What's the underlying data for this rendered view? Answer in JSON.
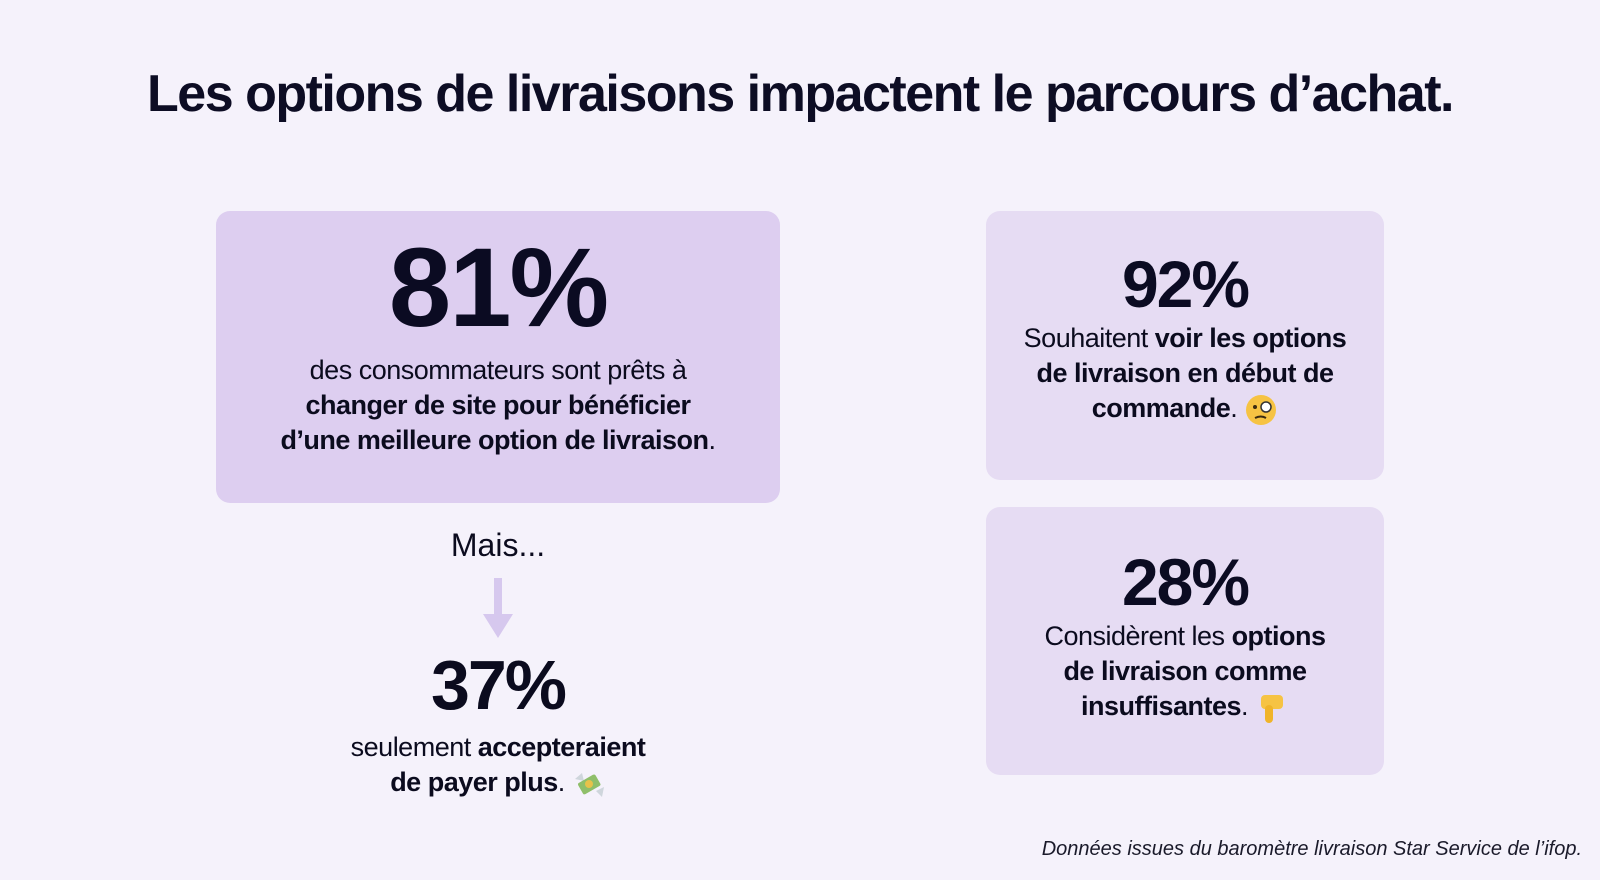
{
  "title": "Les options de livraisons impactent le parcours d’achat.",
  "main_stat": {
    "value": "81%",
    "line1": "des consommateurs sont prêts à",
    "bold1": "changer de site pour bénéficier",
    "bold2": "d’une meilleure option de livraison",
    "end": "."
  },
  "transition": "Mais...",
  "second_stat": {
    "value": "37%",
    "pre": "seulement ",
    "bold1": "accepteraient",
    "bold2": "de payer plus",
    "end": ".",
    "icon": "money-with-wings-icon"
  },
  "card_92": {
    "value": "92%",
    "pre": "Souhaitent ",
    "bold1": "voir les options",
    "bold2": "de livraison en début de",
    "bold3": "commande",
    "end": ".",
    "icon": "face-with-monocle-icon"
  },
  "card_28": {
    "value": "28%",
    "pre": "Considèrent les ",
    "bold1": "options",
    "bold2": "de livraison comme",
    "bold3": "insuffisantes",
    "end": ".",
    "icon": "thumbs-down-icon"
  },
  "colors": {
    "background": "#f5f2fb",
    "main_card": "#ddcef0",
    "side_card": "#e6dcf3",
    "arrow": "#d6c8ee",
    "text": "#0b0b22"
  },
  "footer": "Données issues du baromètre livraison Star Service de l’ifop."
}
